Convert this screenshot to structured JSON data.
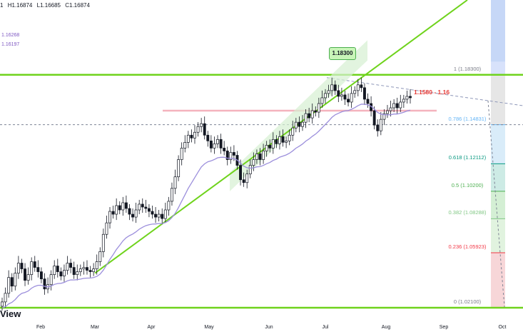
{
  "ohlc": {
    "open": "1",
    "high": "H1.16874",
    "low": "L1.16685",
    "close": "C1.16874"
  },
  "left_levels": [
    "1.16268",
    "1.16197"
  ],
  "view_label": "View",
  "colors": {
    "bg": "#ffffff",
    "candle": "#131722",
    "ma_purple": "#9c8fdc",
    "trend_green": "#6fd31c",
    "resistance_pink": "#f4b3bd",
    "dash_grey": "#7d8394",
    "dash_blue": "#8d96b8",
    "channel_fill": "#d6f0d2"
  },
  "box_label": "1.18300",
  "range_label": "1.1580 - 1.16",
  "chart_data": {
    "type": "candlestick",
    "x_ticks": [
      "Feb",
      "Mar",
      "Apr",
      "May",
      "Jun",
      "Jul",
      "Aug",
      "Sep",
      "Oct"
    ],
    "price_range": [
      1.0165,
      1.235
    ],
    "fibonacci": [
      {
        "ratio": "1",
        "price": 1.183,
        "label": "1 (1.18300)",
        "color": "#787b86"
      },
      {
        "ratio": "0.786",
        "price": 1.14831,
        "label": "0.786 (1.14831)",
        "color": "#64b5f6"
      },
      {
        "ratio": "0.618",
        "price": 1.12112,
        "label": "0.618 (1.12112)",
        "color": "#089981"
      },
      {
        "ratio": "0.5",
        "price": 1.102,
        "label": "0.5 (1.10200)",
        "color": "#4caf50"
      },
      {
        "ratio": "0.382",
        "price": 1.08288,
        "label": "0.382 (1.08288)",
        "color": "#81c784"
      },
      {
        "ratio": "0.236",
        "price": 1.05923,
        "label": "0.236 (1.05923)",
        "color": "#f23645"
      },
      {
        "ratio": "0",
        "price": 1.021,
        "label": "0 (1.02100)",
        "color": "#787b86"
      }
    ],
    "horizontal_levels": [
      1.183,
      1.021
    ],
    "resistance_zone": [
      1.158,
      1.16
    ],
    "closes": [
      1.025,
      1.031,
      1.042,
      1.036,
      1.045,
      1.052,
      1.048,
      1.04,
      1.044,
      1.053,
      1.049,
      1.046,
      1.041,
      1.034,
      1.037,
      1.044,
      1.05,
      1.046,
      1.043,
      1.047,
      1.052,
      1.049,
      1.044,
      1.046,
      1.048,
      1.049,
      1.047,
      1.046,
      1.048,
      1.053,
      1.06,
      1.072,
      1.08,
      1.088,
      1.086,
      1.092,
      1.089,
      1.094,
      1.09,
      1.086,
      1.084,
      1.089,
      1.093,
      1.091,
      1.09,
      1.088,
      1.086,
      1.084,
      1.086,
      1.083,
      1.089,
      1.095,
      1.104,
      1.112,
      1.124,
      1.132,
      1.136,
      1.141,
      1.139,
      1.143,
      1.147,
      1.149,
      1.141,
      1.137,
      1.132,
      1.135,
      1.138,
      1.132,
      1.13,
      1.124,
      1.129,
      1.127,
      1.12,
      1.11,
      1.108,
      1.114,
      1.12,
      1.124,
      1.128,
      1.124,
      1.13,
      1.134,
      1.132,
      1.138,
      1.135,
      1.14,
      1.136,
      1.137,
      1.141,
      1.146,
      1.15,
      1.147,
      1.15,
      1.156,
      1.153,
      1.158,
      1.157,
      1.163,
      1.167,
      1.17,
      1.172,
      1.176,
      1.172,
      1.168,
      1.169,
      1.166,
      1.164,
      1.17,
      1.172,
      1.176,
      1.174,
      1.166,
      1.163,
      1.158,
      1.148,
      1.144,
      1.152,
      1.156,
      1.158,
      1.16,
      1.163,
      1.16,
      1.164,
      1.166,
      1.168,
      1.167
    ]
  }
}
